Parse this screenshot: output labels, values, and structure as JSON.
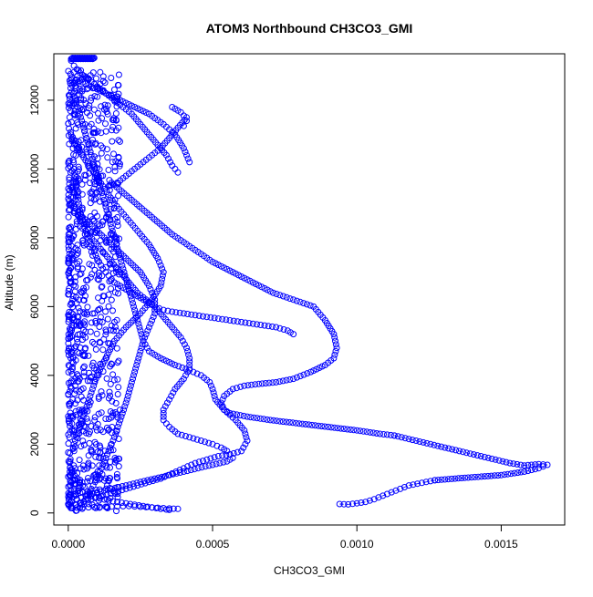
{
  "chart_data": {
    "type": "scatter",
    "title": "ATOM3 Northbound CH3CO3_GMI",
    "xlabel": "CH3CO3_GMI",
    "ylabel": "Altitude (m)",
    "xlim": [
      -5e-05,
      0.00172
    ],
    "ylim": [
      -350,
      13350
    ],
    "x_ticks": [
      0,
      0.0005,
      0.001,
      0.0015
    ],
    "x_tick_labels": [
      "0.0000",
      "0.0005",
      "0.0010",
      "0.0015"
    ],
    "y_ticks": [
      0,
      2000,
      4000,
      6000,
      8000,
      10000,
      12000
    ],
    "y_tick_labels": [
      "0",
      "2000",
      "4000",
      "6000",
      "8000",
      "10000",
      "12000"
    ],
    "marker": "open-circle",
    "color": "#0000ff",
    "grid": false,
    "legend": "none",
    "series": [
      {
        "x": [
          1e-05,
          2e-05,
          4e-05,
          7e-05,
          0.0001,
          0.00013,
          0.00016,
          0.00019,
          0.00022,
          0.00025,
          0.00028,
          0.00031,
          0.00034,
          0.00036,
          0.00038
        ],
        "y": [
          13150,
          13000,
          12800,
          12600,
          12400,
          12200,
          12000,
          11800,
          11600,
          11300,
          11000,
          10700,
          10400,
          10100,
          9900
        ]
      },
      {
        "x": [
          3e-05,
          8e-05,
          0.00013,
          0.00018,
          0.00023,
          0.00028,
          0.00033,
          0.00037,
          0.0004,
          0.00042
        ],
        "y": [
          12600,
          12400,
          12200,
          12000,
          11800,
          11600,
          11300,
          11000,
          10600,
          10200
        ]
      },
      {
        "x": [
          0.00036,
          0.00037,
          0.00038,
          0.00039,
          0.0004,
          0.00041,
          0.0004
        ],
        "y": [
          11800,
          11750,
          11700,
          11650,
          11550,
          11400,
          11250
        ]
      },
      {
        "x": [
          0.00041,
          0.00038,
          0.00035,
          0.00032,
          0.00029,
          0.00026,
          0.00023,
          0.0002,
          0.00017,
          0.00014
        ],
        "y": [
          11500,
          11200,
          10900,
          10600,
          10400,
          10200,
          10000,
          9800,
          9600,
          9500
        ]
      },
      {
        "x": [
          0.00015,
          0.00022,
          0.00029,
          0.00036,
          0.00043,
          0.0005,
          0.00057,
          0.00064,
          0.00071,
          0.00078,
          0.00085,
          0.00089,
          0.00092,
          0.00093,
          0.00092,
          0.00089,
          0.00084,
          0.00078,
          0.00072,
          0.00066,
          0.00061,
          0.00057,
          0.00054,
          0.00053,
          0.00054,
          0.00056,
          0.00062,
          0.0007,
          0.0008,
          0.0009,
          0.001,
          0.00108,
          0.00113
        ],
        "y": [
          9600,
          9100,
          8600,
          8100,
          7700,
          7300,
          7000,
          6700,
          6400,
          6200,
          6000,
          5600,
          5200,
          4800,
          4500,
          4300,
          4100,
          3900,
          3800,
          3750,
          3700,
          3600,
          3400,
          3200,
          3000,
          2900,
          2800,
          2700,
          2600,
          2500,
          2400,
          2300,
          2250
        ]
      },
      {
        "x": [
          0.00113,
          0.00118,
          0.00123,
          0.00128,
          0.00133,
          0.00138,
          0.00143,
          0.00148,
          0.00153,
          0.00158,
          0.00163,
          0.00166,
          0.00163,
          0.00158,
          0.0015,
          0.00142,
          0.00134,
          0.00127
        ],
        "y": [
          2250,
          2150,
          2050,
          1950,
          1850,
          1750,
          1650,
          1550,
          1450,
          1380,
          1420,
          1400,
          1300,
          1200,
          1100,
          1050,
          1000,
          950
        ]
      },
      {
        "x": [
          0.00127,
          0.00124,
          0.00121,
          0.00118,
          0.00115,
          0.00112,
          0.00109,
          0.00106,
          0.00103,
          0.001,
          0.00097,
          0.00094
        ],
        "y": [
          950,
          900,
          850,
          800,
          700,
          600,
          500,
          400,
          320,
          280,
          250,
          260
        ]
      },
      {
        "x": [
          1e-05,
          5e-05,
          0.0001,
          0.00015,
          0.0002,
          0.00025,
          0.00028,
          0.0003,
          0.0003,
          0.00028,
          0.00026,
          0.00028,
          0.00032,
          0.00037,
          0.00042,
          0.00046,
          0.00049,
          0.0005,
          0.00051,
          0.00054,
          0.00058,
          0.00061,
          0.00062,
          0.0006,
          0.00056,
          0.00052,
          0.00048,
          0.00044,
          0.0004,
          0.00036,
          0.00032,
          0.00028,
          0.00024,
          0.0002,
          0.00016,
          0.00012,
          8e-05,
          4e-05,
          1e-05
        ],
        "y": [
          9000,
          8600,
          8200,
          7800,
          7400,
          7000,
          6600,
          6200,
          5800,
          5400,
          5000,
          4700,
          4500,
          4300,
          4150,
          4000,
          3800,
          3600,
          3300,
          3000,
          2700,
          2400,
          2100,
          1800,
          1700,
          1650,
          1550,
          1450,
          1300,
          1150,
          1000,
          900,
          800,
          700,
          600,
          500,
          400,
          300,
          200
        ]
      },
      {
        "x": [
          3e-05,
          6e-05,
          9e-05,
          0.00012,
          0.00015,
          0.00018,
          0.00021,
          0.00024,
          0.00027,
          0.0003,
          0.00033,
          0.00036,
          0.00039,
          0.00041,
          0.00042,
          0.00042,
          0.0004,
          0.00037,
          0.00035,
          0.00033,
          0.00033,
          0.00035,
          0.00038,
          0.00042,
          0.00046,
          0.0005,
          0.00053,
          0.00055,
          0.00056,
          0.00057,
          0.00055,
          0.0005,
          0.00045,
          0.0004,
          0.00035,
          0.0003,
          0.00025,
          0.0002,
          0.00015,
          0.0001,
          6e-05,
          3e-05
        ],
        "y": [
          8400,
          8200,
          7900,
          7600,
          7300,
          7000,
          6700,
          6400,
          6200,
          6000,
          5700,
          5400,
          5100,
          4800,
          4500,
          4200,
          3900,
          3600,
          3300,
          3000,
          2700,
          2500,
          2300,
          2200,
          2100,
          2000,
          1900,
          1800,
          1700,
          1600,
          1500,
          1400,
          1300,
          1200,
          1100,
          1000,
          900,
          800,
          700,
          600,
          500,
          400
        ]
      },
      {
        "x": [
          2e-05,
          4e-05,
          6e-05,
          8e-05,
          0.0001,
          0.00012,
          0.00014,
          0.00016,
          0.00018,
          0.0002,
          0.00022,
          0.00024,
          0.00026,
          0.00024,
          0.00022,
          0.0002,
          0.00018,
          0.00016,
          0.00014,
          0.00012,
          0.0001,
          8e-05,
          6e-05,
          4e-05
        ],
        "y": [
          12100,
          11600,
          11000,
          10400,
          9800,
          9200,
          8600,
          8000,
          7400,
          6800,
          6200,
          5600,
          5000,
          4400,
          3800,
          3200,
          2700,
          2200,
          1800,
          1400,
          1000,
          700,
          400,
          150
        ]
      },
      {
        "x": [
          2e-05,
          5e-05,
          8e-05,
          0.00011,
          0.00014,
          0.00017,
          0.0002,
          0.00023,
          0.00026,
          0.00029,
          0.00032,
          0.00034,
          0.00035
        ],
        "y": [
          700,
          600,
          500,
          420,
          360,
          320,
          280,
          240,
          200,
          160,
          120,
          100,
          90
        ]
      },
      {
        "x": [
          1e-05,
          3e-05,
          5e-05,
          7e-05,
          9e-05,
          0.00011,
          0.00013,
          0.00015,
          0.00017,
          0.00019,
          0.00021,
          0.00023,
          0.00025,
          0.00027,
          0.00029,
          0.00031,
          0.00033,
          0.00035,
          0.00038
        ],
        "y": [
          150,
          155,
          160,
          165,
          170,
          175,
          180,
          185,
          190,
          195,
          200,
          190,
          180,
          170,
          160,
          150,
          140,
          130,
          120
        ]
      },
      {
        "x": [
          1e-05,
          4e-05,
          8e-05,
          0.00012,
          0.00016,
          0.0002,
          0.00024,
          0.00028,
          0.00031,
          0.00033,
          0.00032,
          0.00029,
          0.00025,
          0.0002,
          0.00016,
          0.00013,
          0.0001,
          8e-05,
          6e-05,
          4e-05,
          2e-05
        ],
        "y": [
          11000,
          10500,
          10000,
          9500,
          9000,
          8600,
          8200,
          7800,
          7400,
          7000,
          6600,
          6200,
          5800,
          5400,
          5000,
          4500,
          4000,
          3500,
          3000,
          2500,
          2000
        ]
      },
      {
        "x": [
          2e-05,
          3e-05,
          4e-05,
          6e-05,
          8e-05,
          0.0001,
          0.00012,
          0.00014,
          0.00016,
          0.00018,
          0.0002,
          0.00022,
          0.00024,
          0.00026,
          0.00028,
          0.0003,
          0.00033,
          0.00036,
          0.0004,
          0.00044,
          0.00048,
          0.00052,
          0.00056,
          0.0006,
          0.00064,
          0.00068,
          0.00072,
          0.00076,
          0.00078
        ],
        "y": [
          10000,
          9400,
          8800,
          8200,
          7800,
          7400,
          7100,
          6900,
          6700,
          6600,
          6500,
          6400,
          6300,
          6200,
          6100,
          6000,
          5900,
          5850,
          5800,
          5750,
          5700,
          5650,
          5600,
          5550,
          5500,
          5450,
          5400,
          5300,
          5200
        ]
      }
    ],
    "dense_band": {
      "x_range": [
        0.0,
        0.00018
      ],
      "y_range": [
        50,
        12900
      ]
    },
    "top_cluster": {
      "x_range": [
        1e-05,
        9e-05
      ],
      "y": 13200
    }
  }
}
